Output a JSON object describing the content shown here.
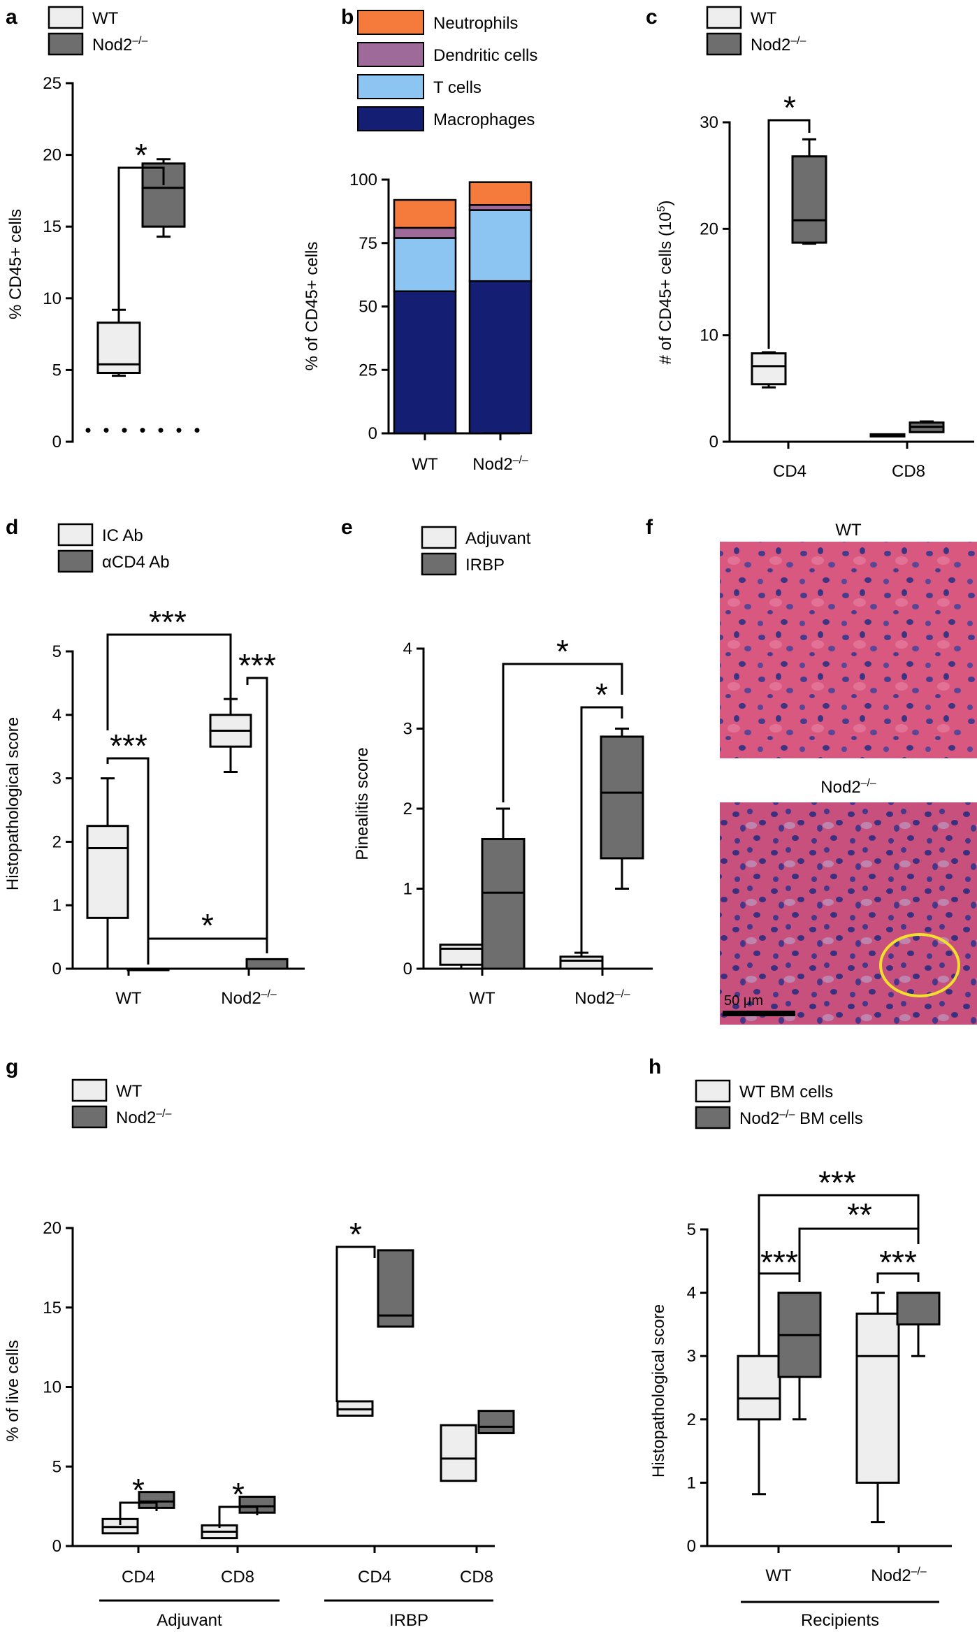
{
  "colors": {
    "light": "#eeeeee",
    "dark": "#6e6e6e",
    "neutrophils": "#f47b3c",
    "dendritic": "#9d6a9a",
    "tcells": "#8cc4f2",
    "macrophages": "#141f73",
    "yellow": "#f2de2c"
  },
  "sup": {
    "ko_base": "Nod2",
    "ko_sup": "–/–",
    "ten_five_pre": "(10",
    "ten_five_sup": "5",
    "ten_five_post": ")"
  },
  "chart_data": [
    {
      "panel": "a",
      "type": "box",
      "ylabel": "% CD45+ cells",
      "ylim": [
        0,
        25
      ],
      "yticks": [
        "0",
        "5",
        "10",
        "15",
        "20",
        "25"
      ],
      "legend": [
        "WT",
        "Nod2–/–"
      ],
      "boxes": [
        {
          "group": "WT",
          "min": 4.6,
          "q1": 4.8,
          "median": 5.4,
          "q3": 8.3,
          "max": 9.2
        },
        {
          "group": "Nod2–/–",
          "min": 14.3,
          "q1": 15.0,
          "median": 17.7,
          "q3": 19.4,
          "max": 19.7
        }
      ],
      "dotted_baseline": 0.8,
      "significance": [
        "*"
      ]
    },
    {
      "panel": "b",
      "type": "stacked-bar",
      "ylabel": "% of CD45+ cells",
      "ylim": [
        0,
        100
      ],
      "yticks": [
        "0",
        "25",
        "50",
        "75",
        "100"
      ],
      "categories": [
        "WT",
        "Nod2–/–"
      ],
      "series": [
        {
          "name": "Macrophages",
          "values": [
            56,
            60
          ]
        },
        {
          "name": "T cells",
          "values": [
            21,
            28
          ]
        },
        {
          "name": "Dendritic cells",
          "values": [
            4,
            2
          ]
        },
        {
          "name": "Neutrophils",
          "values": [
            11,
            9
          ]
        }
      ]
    },
    {
      "panel": "c",
      "type": "box",
      "ylabel": "# of CD45+ cells",
      "ylim": [
        0,
        30
      ],
      "yticks": [
        "0",
        "10",
        "20",
        "30"
      ],
      "categories": [
        "CD4",
        "CD8"
      ],
      "legend": [
        "WT",
        "Nod2–/–"
      ],
      "boxes": [
        {
          "group": "CD4 WT",
          "min": 5.1,
          "q1": 5.4,
          "median": 7.1,
          "q3": 8.3,
          "max": 8.4
        },
        {
          "group": "CD4 Nod2–/–",
          "min": 18.6,
          "q1": 18.7,
          "median": 20.8,
          "q3": 26.8,
          "max": 28.4
        },
        {
          "group": "CD8 WT",
          "min": 0.5,
          "q1": 0.5,
          "median": 0.6,
          "q3": 0.7,
          "max": 0.7
        },
        {
          "group": "CD8 Nod2–/–",
          "min": 0.9,
          "q1": 0.9,
          "median": 1.4,
          "q3": 1.8,
          "max": 1.9
        }
      ],
      "significance": [
        "*"
      ]
    },
    {
      "panel": "d",
      "type": "box",
      "ylabel": "Histopathological score",
      "ylim": [
        0,
        5
      ],
      "yticks": [
        "0",
        "1",
        "2",
        "3",
        "4",
        "5"
      ],
      "categories": [
        "WT",
        "Nod2–/–"
      ],
      "legend": [
        "IC Ab",
        "αCD4 Ab"
      ],
      "boxes": [
        {
          "group": "WT IC Ab",
          "min": 0,
          "q1": 0.8,
          "median": 1.9,
          "q3": 2.25,
          "max": 3.0
        },
        {
          "group": "WT αCD4 Ab",
          "min": 0,
          "q1": 0,
          "median": 0,
          "q3": 0,
          "max": 0
        },
        {
          "group": "Nod2–/– IC Ab",
          "min": 3.1,
          "q1": 3.5,
          "median": 3.75,
          "q3": 4.0,
          "max": 4.25
        },
        {
          "group": "Nod2–/– αCD4 Ab",
          "min": 0,
          "q1": 0,
          "median": 0,
          "q3": 0.15,
          "max": 0.15
        }
      ],
      "significance": [
        "***",
        "***",
        "***",
        "*"
      ]
    },
    {
      "panel": "e",
      "type": "box",
      "ylabel": "Pinealitis score",
      "ylim": [
        0,
        4
      ],
      "yticks": [
        "0",
        "1",
        "2",
        "3",
        "4"
      ],
      "categories": [
        "WT",
        "Nod2–/–"
      ],
      "legend": [
        "Adjuvant",
        "IRBP"
      ],
      "boxes": [
        {
          "group": "WT Adjuvant",
          "min": 0,
          "q1": 0.05,
          "median": 0.25,
          "q3": 0.3,
          "max": 0.3
        },
        {
          "group": "WT IRBP",
          "min": 0,
          "q1": 0,
          "median": 0.95,
          "q3": 1.62,
          "max": 2.0
        },
        {
          "group": "Nod2–/– Adjuvant",
          "min": 0,
          "q1": 0,
          "median": 0.1,
          "q3": 0.15,
          "max": 0.2
        },
        {
          "group": "Nod2–/– IRBP",
          "min": 1.0,
          "q1": 1.38,
          "median": 2.2,
          "q3": 2.9,
          "max": 3.0
        }
      ],
      "significance": [
        "*",
        "*"
      ]
    },
    {
      "panel": "g",
      "type": "box",
      "ylabel": "% of live cells",
      "ylim": [
        0,
        20
      ],
      "yticks": [
        "0",
        "5",
        "10",
        "15",
        "20"
      ],
      "categories": [
        "CD4",
        "CD8",
        "CD4",
        "CD8"
      ],
      "group_labels": [
        "Adjuvant",
        "IRBP"
      ],
      "legend": [
        "WT",
        "Nod2–/–"
      ],
      "boxes": [
        {
          "group": "Adjuvant CD4 WT",
          "min": 0.8,
          "q1": 0.8,
          "median": 1.2,
          "q3": 1.7,
          "max": 1.7
        },
        {
          "group": "Adjuvant CD4 Nod2–/–",
          "min": 2.4,
          "q1": 2.4,
          "median": 2.8,
          "q3": 3.4,
          "max": 3.4
        },
        {
          "group": "Adjuvant CD8 WT",
          "min": 0.5,
          "q1": 0.5,
          "median": 0.9,
          "q3": 1.3,
          "max": 1.3
        },
        {
          "group": "Adjuvant CD8 Nod2–/–",
          "min": 2.1,
          "q1": 2.1,
          "median": 2.5,
          "q3": 3.1,
          "max": 3.1
        },
        {
          "group": "IRBP CD4 WT",
          "min": 8.2,
          "q1": 8.2,
          "median": 8.6,
          "q3": 9.1,
          "max": 9.1
        },
        {
          "group": "IRBP CD4 Nod2–/–",
          "min": 13.8,
          "q1": 13.8,
          "median": 14.5,
          "q3": 18.6,
          "max": 18.6
        },
        {
          "group": "IRBP CD8 WT",
          "min": 4.1,
          "q1": 4.1,
          "median": 5.5,
          "q3": 7.6,
          "max": 7.6
        },
        {
          "group": "IRBP CD8 Nod2–/–",
          "min": 7.1,
          "q1": 7.1,
          "median": 7.5,
          "q3": 8.5,
          "max": 8.5
        }
      ],
      "significance": [
        "*",
        "*",
        "*"
      ]
    },
    {
      "panel": "h",
      "type": "box",
      "ylabel": "Histopathological score",
      "ylim": [
        0,
        5
      ],
      "yticks": [
        "0",
        "1",
        "2",
        "3",
        "4",
        "5"
      ],
      "categories": [
        "WT",
        "Nod2–/–"
      ],
      "xlabel": "Recipients",
      "legend": [
        "WT BM cells",
        "Nod2–/– BM cells"
      ],
      "boxes": [
        {
          "group": "WT WT BM",
          "min": 0.82,
          "q1": 2.0,
          "median": 2.33,
          "q3": 3.0,
          "max": 3.0
        },
        {
          "group": "WT Nod2–/– BM",
          "min": 2.0,
          "q1": 2.67,
          "median": 3.33,
          "q3": 4.0,
          "max": 4.0
        },
        {
          "group": "Nod2–/– WT BM",
          "min": 0.38,
          "q1": 1.0,
          "median": 3.0,
          "q3": 3.67,
          "max": 4.0
        },
        {
          "group": "Nod2–/– Nod2–/– BM",
          "min": 3.0,
          "q1": 3.5,
          "median": 4.0,
          "q3": 4.0,
          "max": 4.0
        }
      ],
      "significance": [
        "***",
        "**",
        "***",
        "***"
      ]
    }
  ],
  "panel_f": {
    "label": "f",
    "top_title": "WT",
    "bottom_title": "Nod2–/–",
    "scale_bar": "50 μm"
  },
  "panel_labels": [
    "a",
    "b",
    "c",
    "d",
    "e",
    "f",
    "g",
    "h"
  ]
}
